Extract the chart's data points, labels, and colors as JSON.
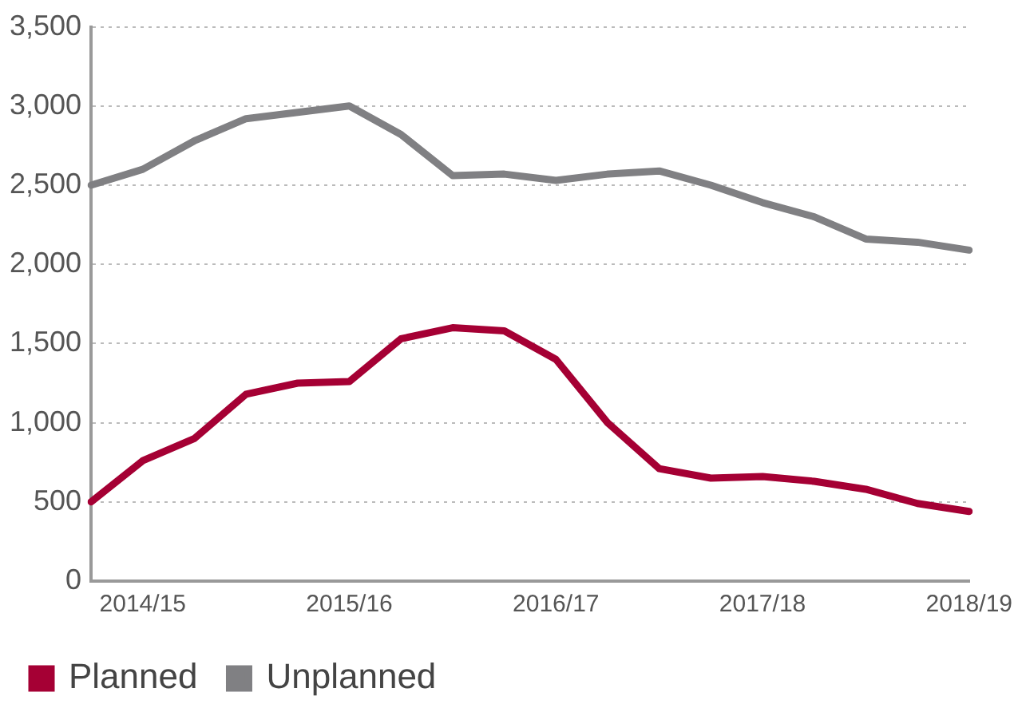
{
  "chart_data": {
    "type": "line",
    "categories": [
      null,
      "2014/15",
      null,
      null,
      null,
      "2015/16",
      null,
      null,
      null,
      "2016/17",
      null,
      null,
      null,
      "2017/18",
      null,
      null,
      null,
      "2018/19"
    ],
    "series": [
      {
        "name": "Planned",
        "color": "#a50034",
        "values": [
          500,
          760,
          900,
          1180,
          1250,
          1260,
          1530,
          1600,
          1580,
          1400,
          1000,
          710,
          650,
          660,
          630,
          580,
          490,
          440
        ]
      },
      {
        "name": "Unplanned",
        "color": "#808083",
        "values": [
          2500,
          2600,
          2780,
          2920,
          2960,
          3000,
          2820,
          2560,
          2570,
          2530,
          2570,
          2590,
          2500,
          2390,
          2300,
          2160,
          2140,
          2090
        ]
      }
    ],
    "ylim": [
      0,
      3500
    ],
    "yticks": [
      0,
      500,
      {
        "value": 1000,
        "label": "1,000"
      },
      {
        "value": 1500,
        "label": "1,500"
      },
      {
        "value": 2000,
        "label": "2,000"
      },
      {
        "value": 2500,
        "label": "2,500"
      },
      {
        "value": 3000,
        "label": "3,000"
      },
      {
        "value": 3500,
        "label": "3,500"
      }
    ],
    "grid": "y",
    "legend": "bottom left",
    "marker": "none",
    "line_style": "solid"
  }
}
